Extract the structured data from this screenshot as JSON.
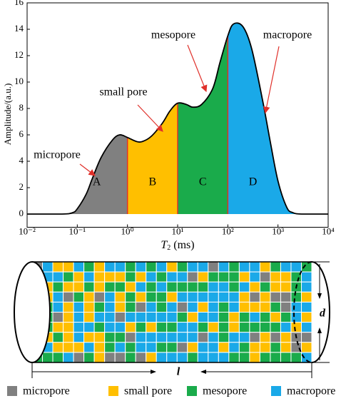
{
  "chart_data": {
    "type": "area",
    "y_label": "Amplitude/(a.u.)",
    "x_label": {
      "symbol": "T",
      "subscript": "2",
      "unit": "(ms)"
    },
    "log_x": true,
    "xlim": [
      0.01,
      10000
    ],
    "xticks": [
      {
        "value": 0.01,
        "label": "10⁻²"
      },
      {
        "value": 0.1,
        "label": "10⁻¹"
      },
      {
        "value": 1,
        "label": "10⁰"
      },
      {
        "value": 10,
        "label": "10¹"
      },
      {
        "value": 100,
        "label": "10²"
      },
      {
        "value": 1000,
        "label": "10³"
      },
      {
        "value": 10000,
        "label": "10⁴"
      }
    ],
    "ylim": [
      -1,
      16
    ],
    "yticks": [
      0,
      2,
      4,
      6,
      8,
      10,
      12,
      14,
      16
    ],
    "x": [
      0.01,
      0.05,
      0.08,
      0.1,
      0.15,
      0.2,
      0.3,
      0.5,
      0.7,
      1,
      1.5,
      2,
      3,
      5,
      7,
      10,
      15,
      20,
      30,
      50,
      70,
      100,
      130,
      200,
      300,
      500,
      700,
      1000,
      1500,
      2000,
      3000,
      10000
    ],
    "values": [
      0,
      0,
      0.1,
      0.4,
      1.5,
      2.7,
      4.3,
      5.6,
      6.0,
      5.8,
      5.5,
      5.5,
      5.9,
      6.9,
      7.8,
      8.4,
      8.3,
      8.1,
      8.3,
      9.5,
      11.5,
      13.5,
      14.4,
      14.2,
      12.5,
      8.5,
      5.5,
      2.5,
      0.5,
      0.1,
      0,
      0
    ],
    "boundaries": [
      1,
      10,
      100
    ],
    "boundary_color": "#e0302a",
    "region_labels": [
      "A",
      "B",
      "C",
      "D"
    ],
    "region_colors": [
      "#808080",
      "#ffbf00",
      "#1aab4b",
      "#1aa9e8"
    ],
    "annotations": [
      "micropore",
      "small pore",
      "mesopore",
      "macropore"
    ]
  },
  "diagram": {
    "length_label": "l",
    "diameter_label": "d",
    "legend": [
      {
        "name": "micropore",
        "color": "#808080"
      },
      {
        "name": "small pore",
        "color": "#ffbf00"
      },
      {
        "name": "mesopore",
        "color": "#1aab4b"
      },
      {
        "name": "macropore",
        "color": "#1aa9e8"
      }
    ]
  }
}
